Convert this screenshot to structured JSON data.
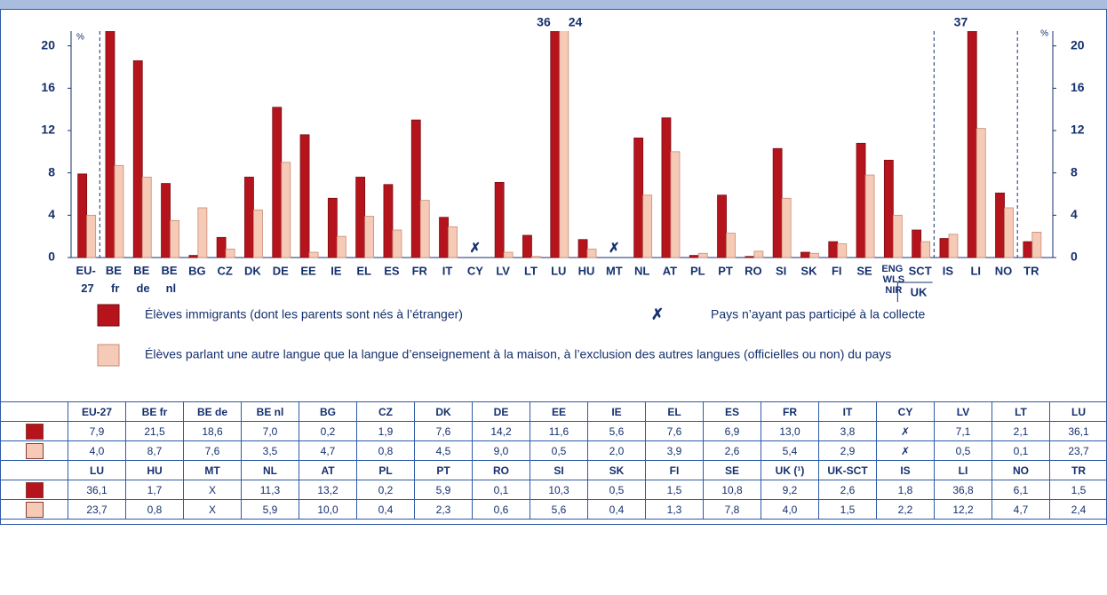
{
  "chart_data": {
    "type": "bar",
    "categories": [
      "EU-27",
      "BE fr",
      "BE de",
      "BE nl",
      "BG",
      "CZ",
      "DK",
      "DE",
      "EE",
      "IE",
      "EL",
      "ES",
      "FR",
      "IT",
      "CY",
      "LV",
      "LT",
      "LU",
      "HU",
      "MT",
      "NL",
      "AT",
      "PL",
      "PT",
      "RO",
      "SI",
      "SK",
      "FI",
      "SE",
      "ENG WLS NIR",
      "SCT",
      "IS",
      "LI",
      "NO",
      "TR"
    ],
    "series": [
      {
        "name": "Élèves immigrants (dont les parents sont nés à l’étranger)",
        "color": "#b5141c",
        "values": [
          7.9,
          21.5,
          18.6,
          7.0,
          0.2,
          1.9,
          7.6,
          14.2,
          11.6,
          5.6,
          7.6,
          6.9,
          13.0,
          3.8,
          null,
          7.1,
          2.1,
          36.1,
          1.7,
          null,
          11.3,
          13.2,
          0.2,
          5.9,
          0.1,
          10.3,
          0.5,
          1.5,
          10.8,
          9.2,
          2.6,
          1.8,
          36.8,
          6.1,
          1.5
        ],
        "value_labels": [
          null,
          null,
          null,
          null,
          null,
          null,
          null,
          null,
          null,
          null,
          null,
          null,
          null,
          null,
          null,
          null,
          null,
          "36",
          null,
          null,
          null,
          null,
          null,
          null,
          null,
          null,
          null,
          null,
          null,
          null,
          null,
          null,
          "37",
          null,
          null
        ]
      },
      {
        "name": "Élèves parlant une autre langue que la langue d’enseignement à la maison, à l’exclusion des autres langues (officielles ou non) du pays",
        "color": "#f5cbb7",
        "values": [
          4.0,
          8.7,
          7.6,
          3.5,
          4.7,
          0.8,
          4.5,
          9.0,
          0.5,
          2.0,
          3.9,
          2.6,
          5.4,
          2.9,
          null,
          0.5,
          0.1,
          23.7,
          0.8,
          null,
          5.9,
          10.0,
          0.4,
          2.3,
          0.6,
          5.6,
          0.4,
          1.3,
          7.8,
          4.0,
          1.5,
          2.2,
          12.2,
          4.7,
          2.4
        ],
        "value_labels": [
          null,
          null,
          null,
          null,
          null,
          null,
          null,
          null,
          null,
          null,
          null,
          null,
          null,
          null,
          null,
          null,
          null,
          "24",
          null,
          null,
          null,
          null,
          null,
          null,
          null,
          null,
          null,
          null,
          null,
          null,
          null,
          null,
          null,
          null,
          null
        ]
      }
    ],
    "ylim": [
      0,
      21.4
    ],
    "yticks": [
      0,
      4,
      8,
      12,
      16,
      20
    ],
    "y_unit": "%",
    "group_label": "UK",
    "missing_marker": "✗",
    "missing_label": "Pays n’ayant pas participé à la collecte"
  },
  "tables": [
    {
      "header": [
        "EU-27",
        "BE fr",
        "BE de",
        "BE nl",
        "BG",
        "CZ",
        "DK",
        "DE",
        "EE",
        "IE",
        "EL",
        "ES",
        "FR",
        "IT",
        "CY",
        "LV",
        "LT",
        "LU"
      ],
      "rows": [
        [
          "7,9",
          "21,5",
          "18,6",
          "7,0",
          "0,2",
          "1,9",
          "7,6",
          "14,2",
          "11,6",
          "5,6",
          "7,6",
          "6,9",
          "13,0",
          "3,8",
          "✗",
          "7,1",
          "2,1",
          "36,1"
        ],
        [
          "4,0",
          "8,7",
          "7,6",
          "3,5",
          "4,7",
          "0,8",
          "4,5",
          "9,0",
          "0,5",
          "2,0",
          "3,9",
          "2,6",
          "5,4",
          "2,9",
          "✗",
          "0,5",
          "0,1",
          "23,7"
        ]
      ]
    },
    {
      "header": [
        "LU",
        "HU",
        "MT",
        "NL",
        "AT",
        "PL",
        "PT",
        "RO",
        "SI",
        "SK",
        "FI",
        "SE",
        "UK (¹)",
        "UK-SCT",
        "IS",
        "LI",
        "NO",
        "TR"
      ],
      "rows": [
        [
          "36,1",
          "1,7",
          "X",
          "11,3",
          "13,2",
          "0,2",
          "5,9",
          "0,1",
          "10,3",
          "0,5",
          "1,5",
          "10,8",
          "9,2",
          "2,6",
          "1,8",
          "36,8",
          "6,1",
          "1,5"
        ],
        [
          "23,7",
          "0,8",
          "X",
          "5,9",
          "10,0",
          "0,4",
          "2,3",
          "0,6",
          "5,6",
          "0,4",
          "1,3",
          "7,8",
          "4,0",
          "1,5",
          "2,2",
          "12,2",
          "4,7",
          "2,4"
        ]
      ]
    }
  ]
}
